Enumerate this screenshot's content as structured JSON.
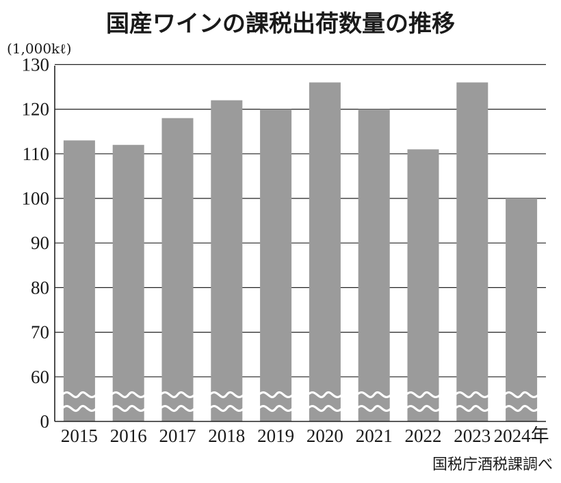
{
  "chart_data": {
    "type": "bar",
    "title": "国産ワインの課税出荷数量の推移",
    "unit_label": "(1,000kℓ)",
    "source": "国税庁酒税課調べ",
    "categories": [
      "2015",
      "2016",
      "2017",
      "2018",
      "2019",
      "2020",
      "2021",
      "2022",
      "2023",
      "2024年"
    ],
    "values": [
      113,
      112,
      118,
      122,
      120,
      126,
      120,
      111,
      126,
      100
    ],
    "y_ticks": [
      "0",
      "60",
      "70",
      "80",
      "90",
      "100",
      "110",
      "120",
      "130"
    ],
    "ylim": [
      0,
      130
    ],
    "axis_break": [
      0,
      60
    ],
    "grid": true,
    "colors": {
      "bar": "#9b9b9b",
      "grid": "#222222",
      "text": "#1a1a1a"
    }
  }
}
